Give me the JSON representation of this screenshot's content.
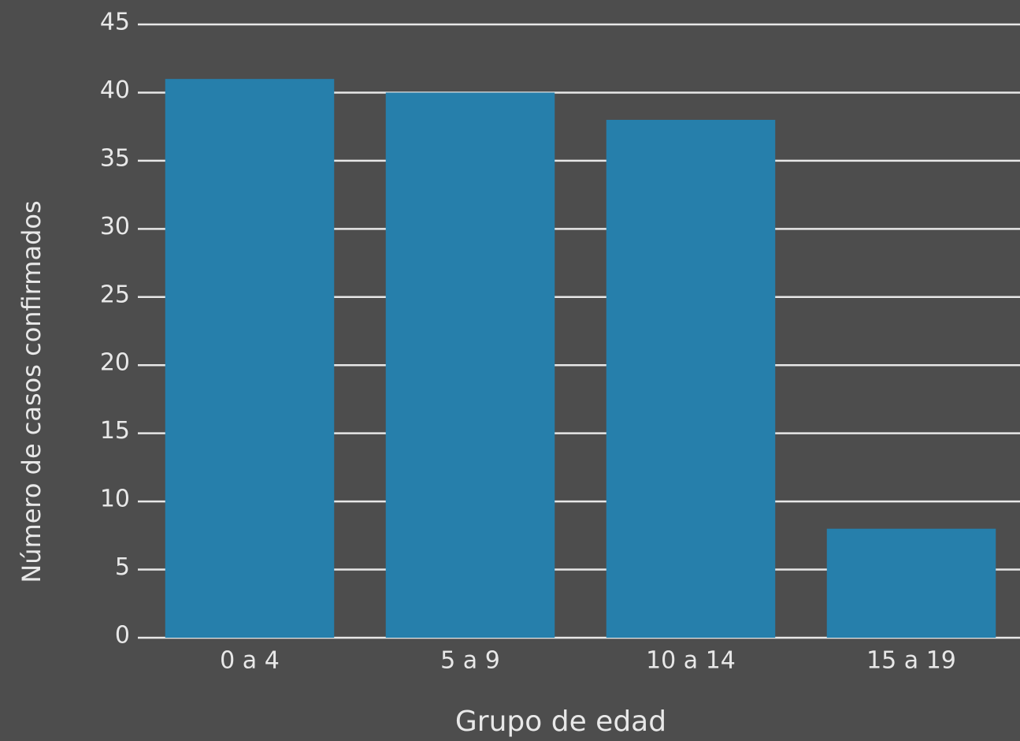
{
  "chart_data": {
    "type": "bar",
    "x_label": "Grupo de edad",
    "y_label": "Número de casos confirmados",
    "categories": [
      "0 a 4",
      "5 a 9",
      "10 a 14",
      "15 a 19"
    ],
    "values": [
      41,
      40,
      38,
      8
    ],
    "color": "#267fab",
    "ylim": [
      0,
      45
    ],
    "yticks": [
      0,
      5,
      10,
      15,
      20,
      25,
      30,
      35,
      40,
      45
    ],
    "grid": true
  }
}
